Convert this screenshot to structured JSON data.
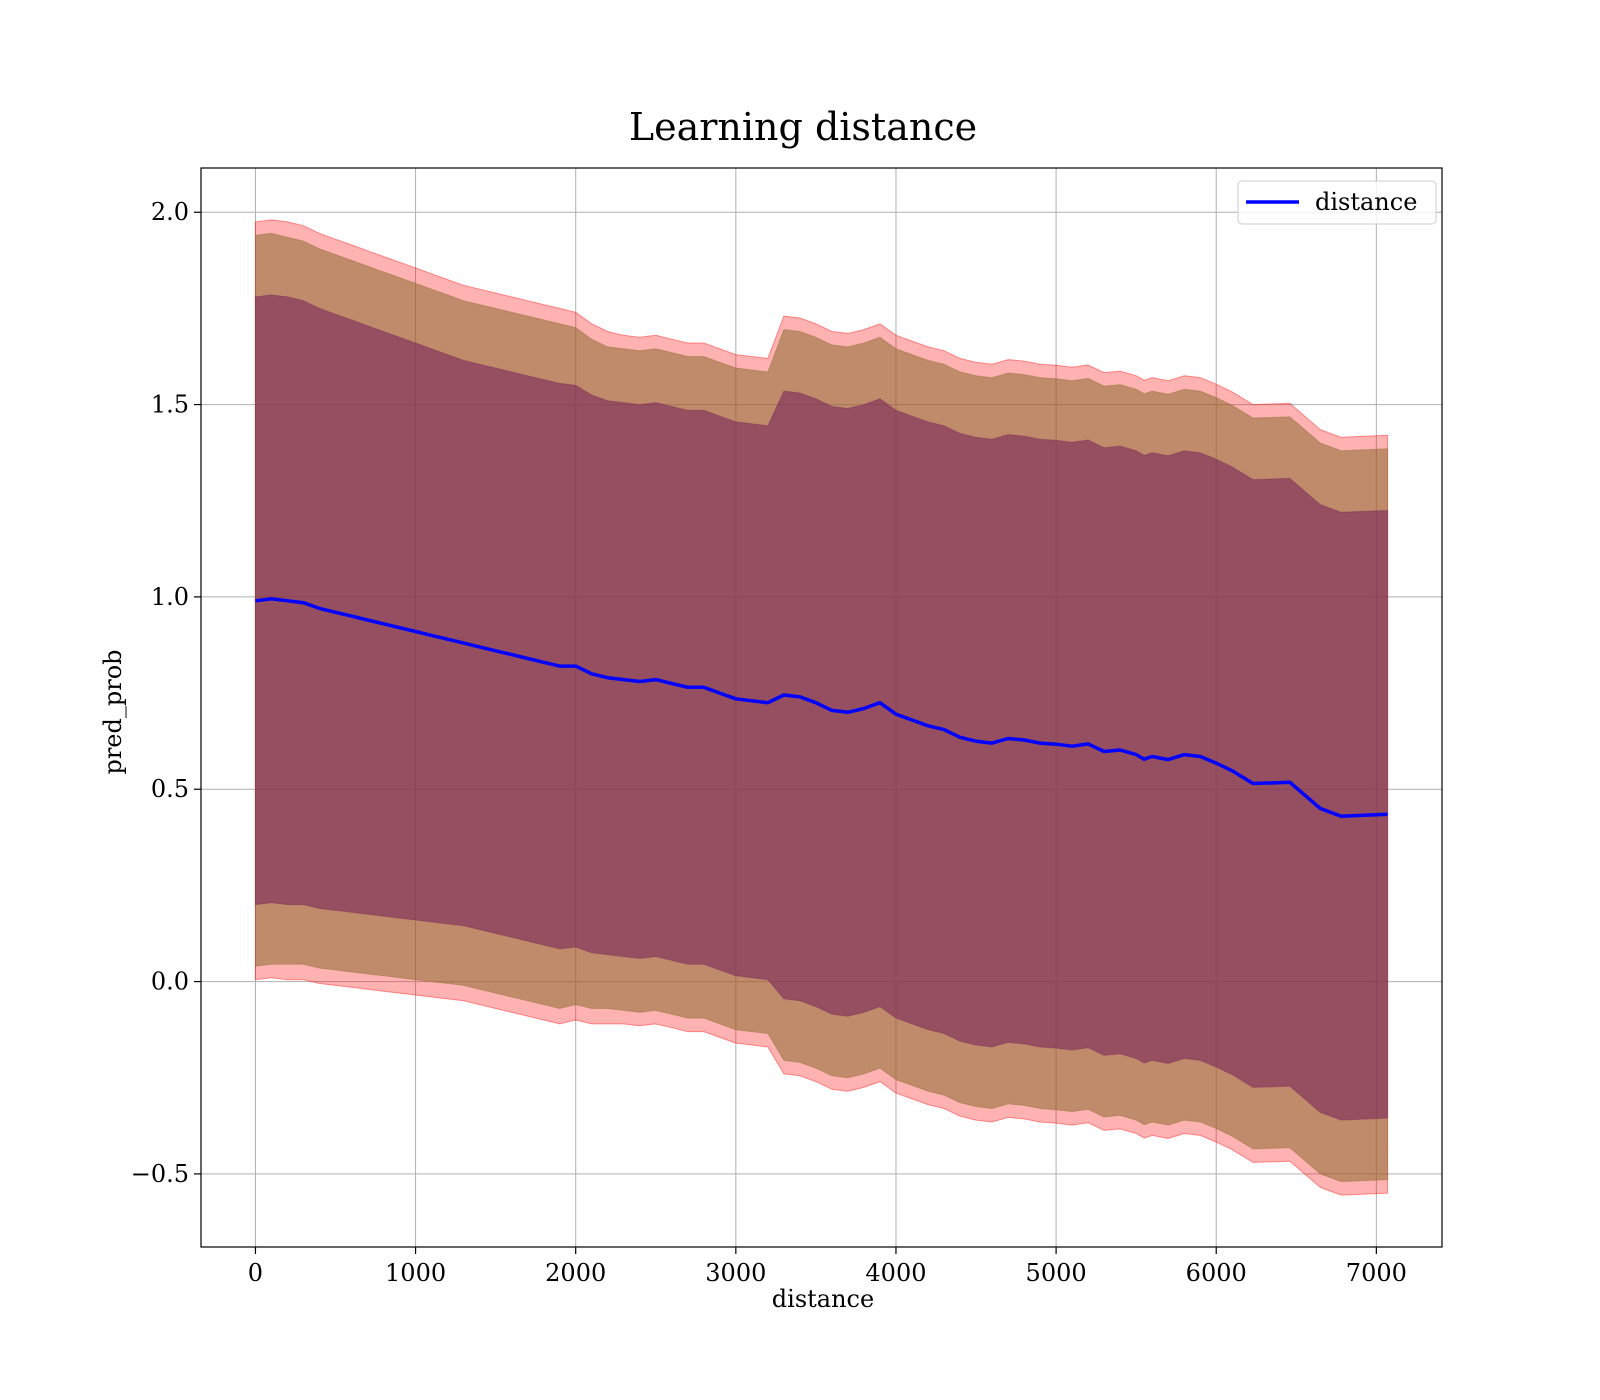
{
  "chart_data": {
    "type": "line",
    "title": "Learning distance",
    "xlabel": "distance",
    "ylabel": "pred_prob",
    "xlim": [
      -340,
      7410
    ],
    "ylim": [
      -0.69,
      2.115
    ],
    "xticks": [
      0,
      1000,
      2000,
      3000,
      4000,
      5000,
      6000,
      7000
    ],
    "yticks": [
      2.0,
      1.5,
      1.0,
      0.5,
      0.0,
      -0.5
    ],
    "ytick_labels": [
      "2.0",
      "1.5",
      "1.0",
      "0.5",
      "0.0",
      "−0.5"
    ],
    "xtick_labels": [
      "0",
      "1000",
      "2000",
      "3000",
      "4000",
      "5000",
      "6000",
      "7000"
    ],
    "grid": true,
    "legend": {
      "position": "top-right",
      "entries": [
        "distance"
      ]
    },
    "colors": {
      "line": "#0000ff",
      "band_outer": "#ff0000",
      "band_middle": "#8c6b2f",
      "band_inner": "#7a2a5a"
    },
    "series": [
      {
        "name": "distance",
        "x": [
          0,
          100,
          200,
          300,
          400,
          500,
          600,
          700,
          800,
          900,
          1000,
          1100,
          1200,
          1300,
          1400,
          1500,
          1600,
          1700,
          1800,
          1900,
          2000,
          2100,
          2200,
          2300,
          2400,
          2500,
          2600,
          2700,
          2800,
          2900,
          3000,
          3100,
          3200,
          3300,
          3400,
          3500,
          3600,
          3700,
          3800,
          3900,
          4000,
          4100,
          4200,
          4300,
          4400,
          4500,
          4600,
          4700,
          4800,
          4900,
          5000,
          5100,
          5200,
          5300,
          5400,
          5500,
          5550,
          5600,
          5700,
          5800,
          5900,
          6000,
          6100,
          6230,
          6460,
          6650,
          6780,
          7070
        ],
        "y": [
          0.99,
          0.995,
          0.99,
          0.985,
          0.97,
          0.96,
          0.95,
          0.94,
          0.93,
          0.92,
          0.91,
          0.9,
          0.89,
          0.88,
          0.87,
          0.86,
          0.85,
          0.84,
          0.83,
          0.82,
          0.82,
          0.8,
          0.79,
          0.785,
          0.78,
          0.785,
          0.775,
          0.765,
          0.765,
          0.75,
          0.735,
          0.73,
          0.725,
          0.745,
          0.74,
          0.725,
          0.705,
          0.7,
          0.71,
          0.725,
          0.695,
          0.68,
          0.665,
          0.655,
          0.635,
          0.625,
          0.62,
          0.632,
          0.628,
          0.62,
          0.617,
          0.612,
          0.618,
          0.598,
          0.602,
          0.59,
          0.578,
          0.585,
          0.577,
          0.59,
          0.585,
          0.568,
          0.548,
          0.515,
          0.518,
          0.45,
          0.43,
          0.435
        ]
      }
    ],
    "bands": [
      {
        "name": "outer",
        "halfwidth": [
          0.985,
          0.985,
          0.985,
          0.98,
          0.975,
          0.97,
          0.965,
          0.96,
          0.955,
          0.95,
          0.945,
          0.94,
          0.935,
          0.93,
          0.93,
          0.93,
          0.93,
          0.93,
          0.93,
          0.93,
          0.92,
          0.91,
          0.9,
          0.895,
          0.895,
          0.895,
          0.895,
          0.895,
          0.895,
          0.895,
          0.895,
          0.895,
          0.895,
          0.985,
          0.985,
          0.985,
          0.985,
          0.985,
          0.985,
          0.985,
          0.985,
          0.985,
          0.985,
          0.985,
          0.985,
          0.985,
          0.985,
          0.985,
          0.985,
          0.985,
          0.985,
          0.985,
          0.985,
          0.985,
          0.985,
          0.985,
          0.985,
          0.985,
          0.985,
          0.985,
          0.985,
          0.985,
          0.985,
          0.985,
          0.985,
          0.985,
          0.985,
          0.985
        ]
      },
      {
        "name": "middle",
        "halfwidth": [
          0.95,
          0.95,
          0.945,
          0.94,
          0.935,
          0.93,
          0.925,
          0.92,
          0.915,
          0.91,
          0.905,
          0.9,
          0.895,
          0.89,
          0.89,
          0.89,
          0.89,
          0.89,
          0.89,
          0.89,
          0.88,
          0.87,
          0.86,
          0.86,
          0.86,
          0.86,
          0.86,
          0.86,
          0.86,
          0.86,
          0.86,
          0.86,
          0.86,
          0.95,
          0.95,
          0.95,
          0.95,
          0.95,
          0.95,
          0.95,
          0.95,
          0.95,
          0.95,
          0.95,
          0.95,
          0.95,
          0.95,
          0.95,
          0.95,
          0.95,
          0.95,
          0.95,
          0.95,
          0.95,
          0.95,
          0.95,
          0.95,
          0.95,
          0.95,
          0.95,
          0.95,
          0.95,
          0.95,
          0.95,
          0.95,
          0.95,
          0.95,
          0.95
        ]
      },
      {
        "name": "inner",
        "halfwidth": [
          0.79,
          0.79,
          0.79,
          0.785,
          0.78,
          0.775,
          0.77,
          0.765,
          0.76,
          0.755,
          0.75,
          0.745,
          0.74,
          0.735,
          0.735,
          0.735,
          0.735,
          0.735,
          0.735,
          0.735,
          0.73,
          0.725,
          0.72,
          0.72,
          0.72,
          0.72,
          0.72,
          0.72,
          0.72,
          0.72,
          0.72,
          0.72,
          0.72,
          0.79,
          0.79,
          0.79,
          0.79,
          0.79,
          0.79,
          0.79,
          0.79,
          0.79,
          0.79,
          0.79,
          0.79,
          0.79,
          0.79,
          0.79,
          0.79,
          0.79,
          0.79,
          0.79,
          0.79,
          0.79,
          0.79,
          0.79,
          0.79,
          0.79,
          0.79,
          0.79,
          0.79,
          0.79,
          0.79,
          0.79,
          0.79,
          0.79,
          0.79,
          0.79
        ]
      }
    ]
  }
}
